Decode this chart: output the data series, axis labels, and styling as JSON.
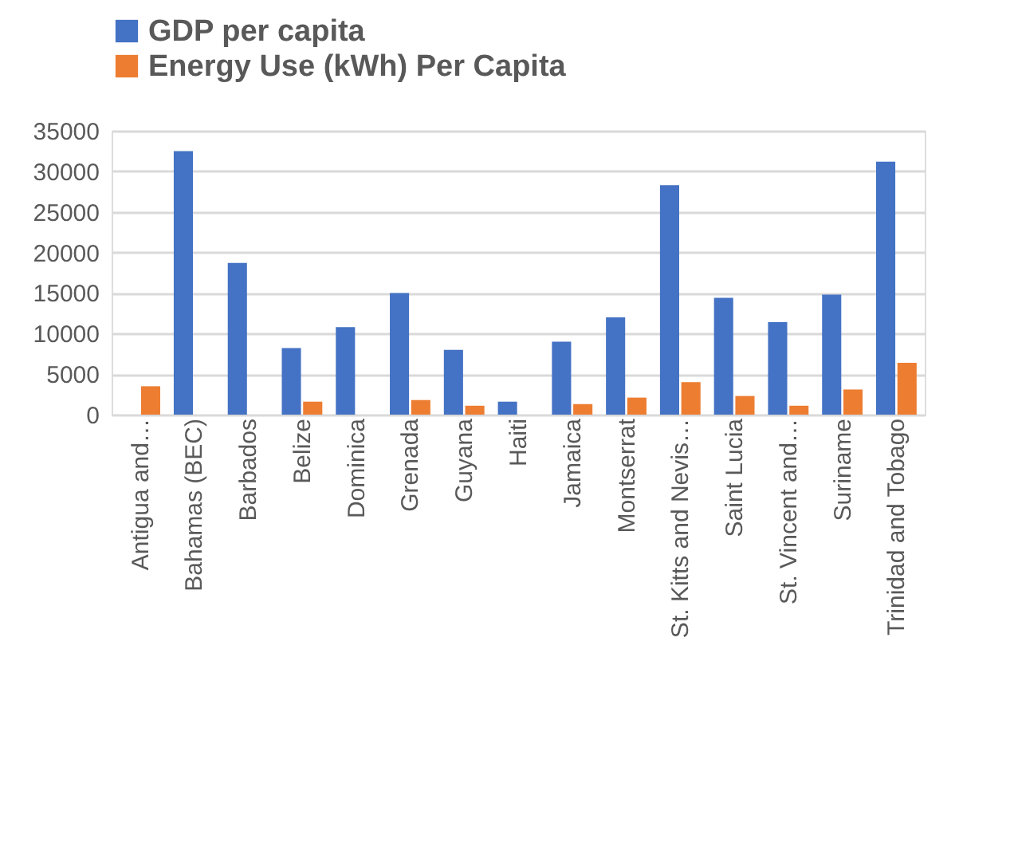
{
  "chart_data": {
    "type": "bar",
    "categories": [
      "Antigua and…",
      "Bahamas (BEC)",
      "Barbados",
      "Belize",
      "Dominica",
      "Grenada",
      "Guyana",
      "Haiti",
      "Jamaica",
      "Montserrat",
      "St. Kitts and Nevis…",
      "Saint Lucia",
      "St. Vincent and…",
      "Suriname",
      "Trinidad and Tobago"
    ],
    "series": [
      {
        "name": "GDP per capita",
        "color": "#4472c4",
        "values": [
          null,
          32500,
          18700,
          8200,
          10800,
          15000,
          8000,
          1600,
          9000,
          12000,
          28300,
          14400,
          11400,
          14800,
          31200
        ]
      },
      {
        "name": "Energy Use (kWh) Per Capita",
        "color": "#ed7d31",
        "values": [
          3500,
          null,
          null,
          1600,
          null,
          1800,
          1100,
          null,
          1300,
          2100,
          4000,
          2300,
          1100,
          3100,
          6400
        ]
      }
    ],
    "ylim": [
      0,
      35000
    ],
    "yticks": [
      0,
      5000,
      10000,
      15000,
      20000,
      25000,
      30000,
      35000
    ],
    "grid": "y",
    "legend": "top"
  }
}
